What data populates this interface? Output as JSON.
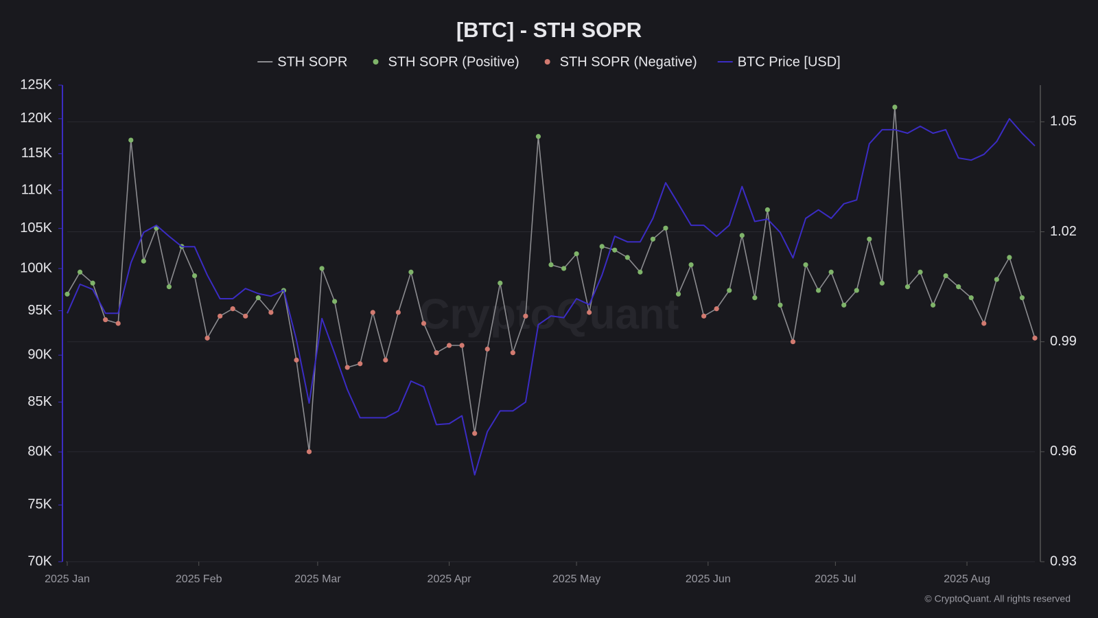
{
  "chart_data": {
    "type": "line",
    "title": "[BTC] - STH SOPR",
    "watermark": "CryptoQuant",
    "credit": "© CryptoQuant. All rights reserved",
    "x": [
      0,
      3,
      6,
      9,
      12,
      15,
      18,
      21,
      24,
      27,
      30,
      33,
      36,
      39,
      42,
      45,
      48,
      51,
      54,
      57,
      60,
      63,
      66,
      69,
      72,
      75,
      78,
      81,
      84,
      87,
      90,
      93,
      96,
      99,
      102,
      105,
      108,
      111,
      114,
      117,
      120,
      123,
      126,
      129,
      132,
      135,
      138,
      141,
      144,
      147,
      150,
      153,
      156,
      159,
      162,
      165,
      168,
      171,
      174,
      177,
      180,
      183,
      186,
      189,
      192,
      195,
      198,
      201,
      204,
      207,
      210,
      213,
      216,
      219,
      222,
      225,
      228
    ],
    "xlim": [
      0,
      228
    ],
    "xticks": [
      {
        "value": 0,
        "label": "2025 Jan"
      },
      {
        "value": 31,
        "label": "2025 Feb"
      },
      {
        "value": 59,
        "label": "2025 Mar"
      },
      {
        "value": 90,
        "label": "2025 Apr"
      },
      {
        "value": 120,
        "label": "2025 May"
      },
      {
        "value": 151,
        "label": "2025 Jun"
      },
      {
        "value": 181,
        "label": "2025 Jul"
      },
      {
        "value": 212,
        "label": "2025 Aug"
      }
    ],
    "ylim": [
      70000,
      125000
    ],
    "log_scale": true,
    "yticks": [
      {
        "value": 70000,
        "label": "70K"
      },
      {
        "value": 75000,
        "label": "75K"
      },
      {
        "value": 80000,
        "label": "80K"
      },
      {
        "value": 85000,
        "label": "85K"
      },
      {
        "value": 90000,
        "label": "90K"
      },
      {
        "value": 95000,
        "label": "95K"
      },
      {
        "value": 100000,
        "label": "100K"
      },
      {
        "value": 105000,
        "label": "105K"
      },
      {
        "value": 110000,
        "label": "110K"
      },
      {
        "value": 115000,
        "label": "115K"
      },
      {
        "value": 120000,
        "label": "120K"
      },
      {
        "value": 125000,
        "label": "125K"
      }
    ],
    "y2lim": [
      0.93,
      1.06
    ],
    "y2ticks": [
      0.93,
      0.96,
      0.99,
      1.02,
      1.05
    ],
    "grid": true,
    "legend": "top",
    "series": [
      {
        "name": "STH SOPR",
        "color": "#8c8c90",
        "axis": "y2",
        "values": [
          1.003,
          1.009,
          1.006,
          0.996,
          0.995,
          1.045,
          1.012,
          1.021,
          1.005,
          1.016,
          1.008,
          0.991,
          0.997,
          0.999,
          0.997,
          1.002,
          0.998,
          1.004,
          0.985,
          0.96,
          1.01,
          1.001,
          0.983,
          0.984,
          0.998,
          0.985,
          0.998,
          1.009,
          0.995,
          0.987,
          0.989,
          0.989,
          0.965,
          0.988,
          1.006,
          0.987,
          0.997,
          1.046,
          1.011,
          1.01,
          1.014,
          0.998,
          1.016,
          1.015,
          1.013,
          1.009,
          1.018,
          1.021,
          1.003,
          1.011,
          0.997,
          0.999,
          1.004,
          1.019,
          1.002,
          1.026,
          1.0,
          0.99,
          1.011,
          1.004,
          1.009,
          1.0,
          1.004,
          1.018,
          1.006,
          1.054,
          1.005,
          1.009,
          1.0,
          1.008,
          1.005,
          1.002,
          0.995,
          1.007,
          1.013,
          1.002,
          0.991
        ]
      },
      {
        "name": "STH SOPR (Positive)",
        "color": "#7fb46a"
      },
      {
        "name": "STH SOPR (Negative)",
        "color": "#d27a70"
      },
      {
        "name": "BTC Price [USD]",
        "color": "#3b2cc4",
        "values": [
          94700,
          98100,
          97500,
          94700,
          94700,
          100700,
          104500,
          105400,
          104000,
          102700,
          102700,
          99200,
          96400,
          96400,
          97600,
          97000,
          96700,
          97400,
          91700,
          84900,
          94100,
          90200,
          86300,
          83400,
          83400,
          83400,
          84100,
          87200,
          86600,
          82700,
          82800,
          83600,
          77800,
          82000,
          84100,
          84100,
          85000,
          93400,
          94400,
          94200,
          96400,
          95700,
          99200,
          104000,
          103300,
          103300,
          106300,
          111000,
          108200,
          105400,
          105400,
          104000,
          105400,
          110500,
          105900,
          106200,
          104500,
          101300,
          106300,
          107400,
          106300,
          108200,
          108700,
          116400,
          118400,
          118400,
          117900,
          118900,
          117900,
          118400,
          114400,
          114100,
          114900,
          116700,
          120000,
          117900,
          116100
        ]
      }
    ]
  }
}
